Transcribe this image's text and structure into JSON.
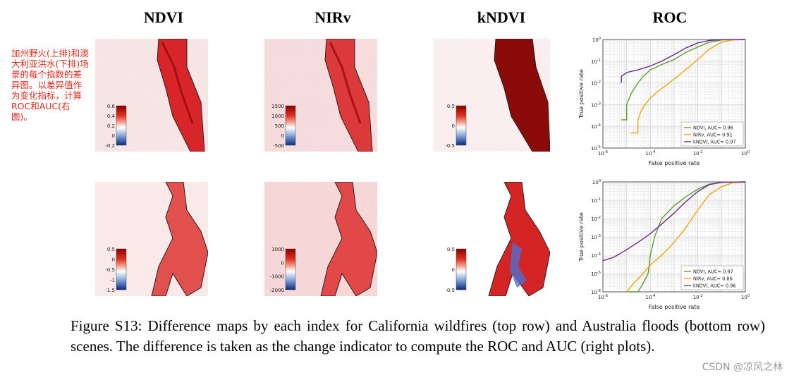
{
  "columns": {
    "ndvi": "NDVI",
    "nirv": "NIRv",
    "kndvi": "kNDVI",
    "roc": "ROC"
  },
  "note": "加州野火(上排)和澳大利亚洪水(下排)场景的每个指数的差异图。以差异值作为变化指标，计算ROC和AUC(右图)。",
  "colorbars": {
    "row1": {
      "ndvi": [
        "0.6",
        "0.4",
        "0.2",
        "0",
        "-0.2"
      ],
      "nirv": [
        "1500",
        "1000",
        "500",
        "0",
        "-500"
      ],
      "kndvi": [
        "0.5",
        "0",
        "-0.5"
      ]
    },
    "row2": {
      "ndvi": [
        "0.5",
        "0",
        "-0.5",
        "-1",
        "-1.5"
      ],
      "nirv": [
        "1000",
        "0",
        "-1000",
        "-2000"
      ],
      "kndvi": [
        "0.5",
        "0",
        "-0.5"
      ]
    }
  },
  "chart_data": [
    {
      "type": "line",
      "title": "",
      "xlabel": "False positive rate",
      "ylabel": "True positive rate",
      "xscale": "log",
      "yscale": "log",
      "xlim": [
        1e-06,
        1
      ],
      "ylim": [
        1e-05,
        1
      ],
      "xticks": [
        "10^-6",
        "10^-4",
        "10^-2",
        "10^0"
      ],
      "yticks": [
        "10^0",
        "10^-1",
        "10^-2",
        "10^-3",
        "10^-4",
        "10^-5"
      ],
      "grid": true,
      "legend": "bottom-right",
      "series": [
        {
          "name": "NDVI, AUC= 0.96",
          "color": "#5aa02c",
          "x": [
            6e-06,
            1e-05,
            1e-05,
            1.5e-05,
            2e-05,
            3e-05,
            5e-05,
            0.0001,
            0.0003,
            0.001,
            0.003,
            0.01,
            0.03,
            0.1,
            1
          ],
          "y": [
            0.0002,
            0.0002,
            0.001,
            0.003,
            0.005,
            0.01,
            0.02,
            0.04,
            0.07,
            0.12,
            0.25,
            0.45,
            0.75,
            0.95,
            1
          ]
        },
        {
          "name": "NIRv, AUC= 0.91",
          "color": "#f0a30a",
          "x": [
            1.5e-05,
            3e-05,
            3e-05,
            4e-05,
            6e-05,
            0.0001,
            0.0002,
            0.0004,
            0.001,
            0.003,
            0.01,
            0.03,
            0.1,
            0.3,
            1
          ],
          "y": [
            5e-05,
            5e-05,
            0.0002,
            0.0005,
            0.001,
            0.002,
            0.004,
            0.007,
            0.015,
            0.04,
            0.12,
            0.35,
            0.75,
            0.95,
            1
          ]
        },
        {
          "name": "kNDVI, AUC= 0.97",
          "color": "#6a2c91",
          "x": [
            6e-06,
            6e-06,
            1e-05,
            3e-05,
            0.0001,
            0.0003,
            0.001,
            0.003,
            0.01,
            0.03,
            0.1,
            1
          ],
          "y": [
            0.01,
            0.02,
            0.03,
            0.04,
            0.06,
            0.1,
            0.2,
            0.4,
            0.7,
            0.9,
            0.98,
            1
          ]
        }
      ]
    },
    {
      "type": "line",
      "title": "",
      "xlabel": "False positive rate",
      "ylabel": "True positive rate",
      "xscale": "log",
      "yscale": "log",
      "xlim": [
        1e-06,
        1
      ],
      "ylim": [
        1e-06,
        1
      ],
      "xticks": [
        "10^-6",
        "10^-4",
        "10^-2",
        "10^0"
      ],
      "yticks": [
        "10^0",
        "10^-1",
        "10^-2",
        "10^-3",
        "10^-4",
        "10^-5",
        "10^-6"
      ],
      "grid": true,
      "legend": "bottom-right",
      "series": [
        {
          "name": "NDVI, AUC= 0.97",
          "color": "#5aa02c",
          "x": [
            1e-05,
            3e-05,
            5e-05,
            8e-05,
            0.0001,
            0.00015,
            0.0003,
            0.001,
            0.003,
            0.01,
            0.03,
            0.1,
            1
          ],
          "y": [
            1e-06,
            1e-06,
            3e-06,
            1e-05,
            0.0001,
            0.001,
            0.01,
            0.05,
            0.15,
            0.4,
            0.75,
            0.95,
            1
          ]
        },
        {
          "name": "NIRv, AUC= 0.86",
          "color": "#f0a30a",
          "x": [
            1e-05,
            2e-05,
            5e-05,
            0.0001,
            0.0003,
            0.001,
            0.003,
            0.01,
            0.03,
            0.1,
            0.3,
            1
          ],
          "y": [
            1e-06,
            3e-06,
            1e-05,
            3e-05,
            0.0001,
            0.0005,
            0.003,
            0.03,
            0.2,
            0.55,
            0.9,
            1
          ]
        },
        {
          "name": "kNDVI, AUC= 0.96",
          "color": "#6a2c91",
          "x": [
            1e-06,
            3e-06,
            1e-05,
            3e-05,
            0.0001,
            0.0003,
            0.001,
            0.003,
            0.01,
            0.03,
            0.1,
            1
          ],
          "y": [
            5e-05,
            8e-05,
            0.0002,
            0.0005,
            0.0015,
            0.005,
            0.02,
            0.08,
            0.3,
            0.7,
            0.95,
            1
          ]
        }
      ]
    }
  ],
  "caption": "Figure S13: Difference maps by each index for California wildfires (top row) and Australia floods (bottom row) scenes. The difference is taken as the change indicator to compute the ROC and AUC (right plots).",
  "watermark": "CSDN @凉风之林"
}
